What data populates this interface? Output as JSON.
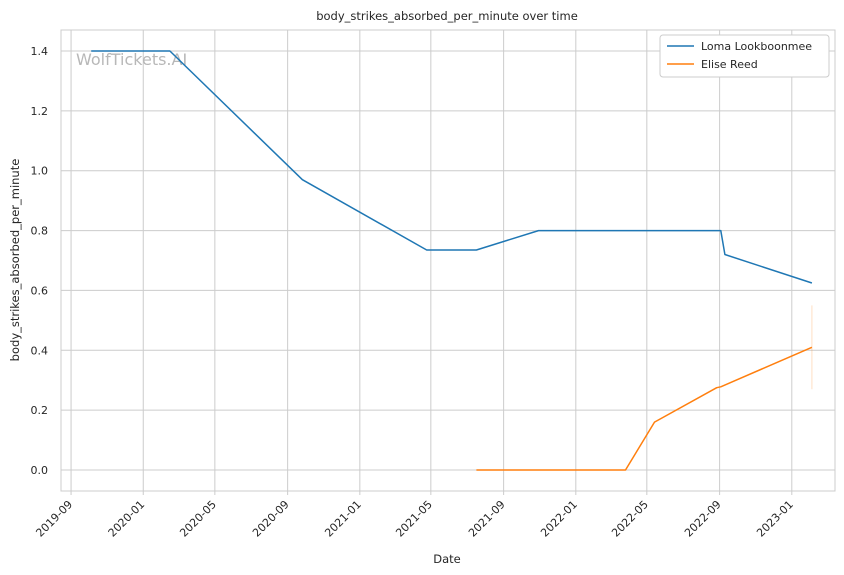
{
  "chart_data": {
    "type": "line",
    "title": "body_strikes_absorbed_per_minute over time",
    "xlabel": "Date",
    "ylabel": "body_strikes_absorbed_per_minute",
    "watermark": "WolfTickets.AI",
    "x_ticks": [
      "2019-09",
      "2020-01",
      "2020-05",
      "2020-09",
      "2021-01",
      "2021-05",
      "2021-09",
      "2022-01",
      "2022-05",
      "2022-09",
      "2023-01"
    ],
    "y_ticks": [
      "0.0",
      "0.2",
      "0.4",
      "0.6",
      "0.8",
      "1.0",
      "1.2",
      "1.4"
    ],
    "xlim": [
      "2019-08-15",
      "2023-03-15"
    ],
    "ylim": [
      -0.07,
      1.47
    ],
    "grid": true,
    "legend_position": "top-right",
    "series": [
      {
        "name": "Loma Lookboonmee",
        "color": "#1f77b4",
        "points": [
          [
            "2019-10-05",
            1.4
          ],
          [
            "2020-02-15",
            1.4
          ],
          [
            "2020-09-26",
            0.97
          ],
          [
            "2021-04-24",
            0.735
          ],
          [
            "2021-07-17",
            0.735
          ],
          [
            "2021-10-30",
            0.8
          ],
          [
            "2022-09-03",
            0.8
          ],
          [
            "2022-09-10",
            0.72
          ],
          [
            "2023-02-04",
            0.625
          ]
        ]
      },
      {
        "name": "Elise Reed",
        "color": "#ff7f0e",
        "points": [
          [
            "2021-07-17",
            0.0
          ],
          [
            "2022-03-26",
            0.0
          ],
          [
            "2022-05-14",
            0.16
          ],
          [
            "2022-08-27",
            0.275
          ],
          [
            "2022-09-03",
            0.278
          ],
          [
            "2023-02-04",
            0.41
          ]
        ],
        "error_bar": {
          "x": "2023-02-04",
          "low": 0.27,
          "high": 0.55
        }
      }
    ]
  }
}
